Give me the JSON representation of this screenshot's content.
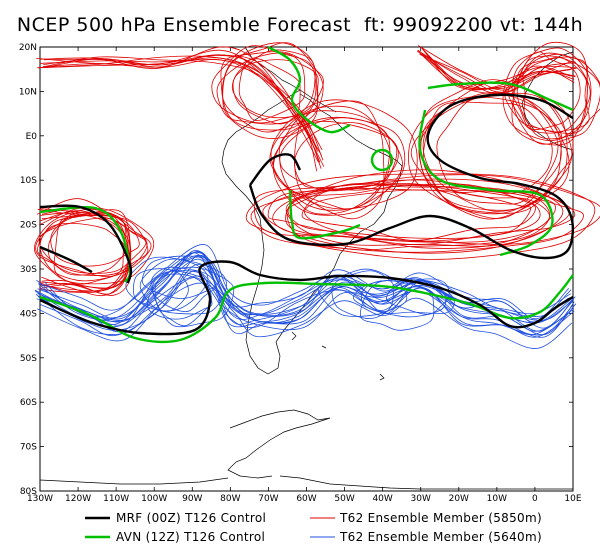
{
  "title": "NCEP 500 hPa Ensemble Forecast  ft: 99092200 vt: 144h",
  "map": {
    "lat_labels": [
      "20N",
      "10N",
      "E0",
      "10S",
      "20S",
      "30S",
      "40S",
      "50S",
      "60S",
      "70S",
      "80S"
    ],
    "lon_labels": [
      "130W",
      "120W",
      "110W",
      "100W",
      "90W",
      "80W",
      "70W",
      "60W",
      "50W",
      "40W",
      "30W",
      "20W",
      "10W",
      "0",
      "10E"
    ],
    "lon_range": [
      -130,
      10
    ],
    "lat_range": [
      -80,
      20
    ]
  },
  "legend": [
    {
      "label": "MRF (00Z) T126 Control",
      "color": "#000000",
      "width": 2.6
    },
    {
      "label": "AVN (12Z) T126 Control",
      "color": "#00c000",
      "width": 2.6
    },
    {
      "label": "T62 Ensemble Member (5850m)",
      "color": "#e00000",
      "width": 1
    },
    {
      "label": "T62 Ensemble Member (5640m)",
      "color": "#2050e0",
      "width": 1
    }
  ],
  "colors": {
    "mrf": "#000000",
    "avn": "#00c000",
    "red": "#e00000",
    "blue": "#2050e0",
    "coast": "#000000"
  }
}
